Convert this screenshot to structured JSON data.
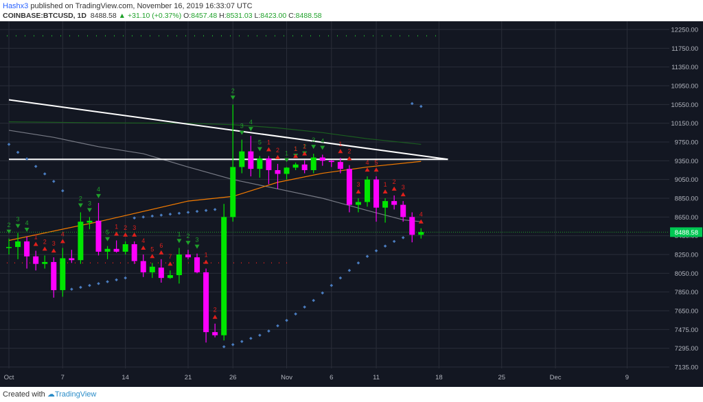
{
  "header": {
    "user": "Hashx3",
    "published": "published on TradingView.com, November 16, 2019 16:33:07 UTC",
    "symbol": "COINBASE:BTCUSD, 1D",
    "last": "8488.58",
    "change": "▲ +31.10 (+0.37%)",
    "o_label": "O:",
    "o_value": "8457.48",
    "h_label": "H:",
    "h_value": "8531.03",
    "l_label": "L:",
    "l_value": "8423.00",
    "c_label": "C:",
    "c_value": "8488.58"
  },
  "footer": {
    "created_with": "Created with",
    "brand": "TradingView"
  },
  "colors": {
    "background": "#131722",
    "grid": "#2a2e39",
    "axis_text": "#b2b5be",
    "bull": "#00e600",
    "bear": "#ff00ff",
    "sma_orange": "#f57c00",
    "sma_gray": "#787b86",
    "sma_green": "#1b5e20",
    "trendline": "#ffffff",
    "sar": "#4a7cbf",
    "td_buy": "#1fa12a",
    "td_sell": "#e0201b",
    "price_tag": "#00c853"
  },
  "chart_data": {
    "type": "candlestick",
    "x_ticks": [
      {
        "label": "Oct",
        "day": 0
      },
      {
        "label": "7",
        "day": 6
      },
      {
        "label": "14",
        "day": 13
      },
      {
        "label": "21",
        "day": 20
      },
      {
        "label": "26",
        "day": 25
      },
      {
        "label": "Nov",
        "day": 31
      },
      {
        "label": "6",
        "day": 36
      },
      {
        "label": "11",
        "day": 41
      },
      {
        "label": "18",
        "day": 48
      },
      {
        "label": "25",
        "day": 55
      },
      {
        "label": "Dec",
        "day": 61
      },
      {
        "label": "9",
        "day": 69
      }
    ],
    "y_ticks": [
      "12250.00",
      "11750.00",
      "11350.00",
      "10950.00",
      "10550.00",
      "10150.00",
      "9750.00",
      "9350.00",
      "9050.00",
      "8850.00",
      "8650.00",
      "8450.00",
      "8250.00",
      "8050.00",
      "7850.00",
      "7650.00",
      "7475.00",
      "7295.00",
      "7135.00"
    ],
    "y_ticks_values": [
      12250,
      11750,
      11350,
      10950,
      10550,
      10150,
      9750,
      9350,
      9050,
      8850,
      8650,
      8450,
      8250,
      8050,
      7850,
      7650,
      7475,
      7295,
      7135
    ],
    "price_tag": "8488.58",
    "last_price": 8488.58,
    "candles": [
      {
        "day": 0,
        "o": 8320,
        "h": 8420,
        "l": 8250,
        "c": 8330
      },
      {
        "day": 1,
        "o": 8330,
        "h": 8480,
        "l": 8200,
        "c": 8390
      },
      {
        "day": 2,
        "o": 8390,
        "h": 8440,
        "l": 8100,
        "c": 8230
      },
      {
        "day": 3,
        "o": 8230,
        "h": 8290,
        "l": 8080,
        "c": 8150
      },
      {
        "day": 4,
        "o": 8150,
        "h": 8240,
        "l": 8100,
        "c": 8170
      },
      {
        "day": 5,
        "o": 8170,
        "h": 8220,
        "l": 7790,
        "c": 7870
      },
      {
        "day": 6,
        "o": 7870,
        "h": 8320,
        "l": 7800,
        "c": 8210
      },
      {
        "day": 7,
        "o": 8210,
        "h": 8300,
        "l": 8160,
        "c": 8190
      },
      {
        "day": 8,
        "o": 8190,
        "h": 8700,
        "l": 8150,
        "c": 8600
      },
      {
        "day": 9,
        "o": 8590,
        "h": 8650,
        "l": 8520,
        "c": 8610
      },
      {
        "day": 10,
        "o": 8610,
        "h": 8800,
        "l": 8240,
        "c": 8280
      },
      {
        "day": 11,
        "o": 8280,
        "h": 8340,
        "l": 8200,
        "c": 8310
      },
      {
        "day": 12,
        "o": 8310,
        "h": 8400,
        "l": 8270,
        "c": 8280
      },
      {
        "day": 13,
        "o": 8280,
        "h": 8390,
        "l": 8250,
        "c": 8360
      },
      {
        "day": 14,
        "o": 8360,
        "h": 8390,
        "l": 8150,
        "c": 8180
      },
      {
        "day": 15,
        "o": 8180,
        "h": 8250,
        "l": 8010,
        "c": 8060
      },
      {
        "day": 16,
        "o": 8060,
        "h": 8160,
        "l": 8000,
        "c": 8120
      },
      {
        "day": 17,
        "o": 8110,
        "h": 8200,
        "l": 7950,
        "c": 8000
      },
      {
        "day": 18,
        "o": 8000,
        "h": 8080,
        "l": 7990,
        "c": 8030
      },
      {
        "day": 19,
        "o": 8030,
        "h": 8320,
        "l": 7940,
        "c": 8250
      },
      {
        "day": 20,
        "o": 8250,
        "h": 8300,
        "l": 8200,
        "c": 8220
      },
      {
        "day": 21,
        "o": 8220,
        "h": 8260,
        "l": 8050,
        "c": 8060
      },
      {
        "day": 22,
        "o": 8060,
        "h": 8100,
        "l": 7350,
        "c": 7450
      },
      {
        "day": 23,
        "o": 7450,
        "h": 7530,
        "l": 7400,
        "c": 7420
      },
      {
        "day": 24,
        "o": 7420,
        "h": 8790,
        "l": 7370,
        "c": 8650
      },
      {
        "day": 25,
        "o": 8650,
        "h": 10550,
        "l": 8600,
        "c": 9250
      },
      {
        "day": 26,
        "o": 9250,
        "h": 9800,
        "l": 9150,
        "c": 9550
      },
      {
        "day": 27,
        "o": 9550,
        "h": 9880,
        "l": 9100,
        "c": 9220
      },
      {
        "day": 28,
        "o": 9220,
        "h": 9450,
        "l": 9080,
        "c": 9400
      },
      {
        "day": 29,
        "o": 9400,
        "h": 9450,
        "l": 9000,
        "c": 9200
      },
      {
        "day": 30,
        "o": 9200,
        "h": 9300,
        "l": 8950,
        "c": 9140
      },
      {
        "day": 31,
        "o": 9140,
        "h": 9250,
        "l": 9050,
        "c": 9240
      },
      {
        "day": 32,
        "o": 9240,
        "h": 9320,
        "l": 9200,
        "c": 9290
      },
      {
        "day": 33,
        "o": 9290,
        "h": 9360,
        "l": 9150,
        "c": 9200
      },
      {
        "day": 34,
        "o": 9200,
        "h": 9500,
        "l": 9150,
        "c": 9420
      },
      {
        "day": 35,
        "o": 9420,
        "h": 9480,
        "l": 9270,
        "c": 9350
      },
      {
        "day": 36,
        "o": 9350,
        "h": 9370,
        "l": 9250,
        "c": 9330
      },
      {
        "day": 37,
        "o": 9330,
        "h": 9410,
        "l": 9150,
        "c": 9220
      },
      {
        "day": 38,
        "o": 9220,
        "h": 9280,
        "l": 8700,
        "c": 8780
      },
      {
        "day": 39,
        "o": 8780,
        "h": 8850,
        "l": 8700,
        "c": 8810
      },
      {
        "day": 40,
        "o": 8810,
        "h": 9100,
        "l": 8760,
        "c": 9050
      },
      {
        "day": 41,
        "o": 9050,
        "h": 9100,
        "l": 8600,
        "c": 8750
      },
      {
        "day": 42,
        "o": 8750,
        "h": 8850,
        "l": 8590,
        "c": 8820
      },
      {
        "day": 43,
        "o": 8820,
        "h": 8880,
        "l": 8730,
        "c": 8780
      },
      {
        "day": 44,
        "o": 8780,
        "h": 8820,
        "l": 8600,
        "c": 8650
      },
      {
        "day": 45,
        "o": 8650,
        "h": 8700,
        "l": 8380,
        "c": 8460
      },
      {
        "day": 46,
        "o": 8460,
        "h": 8530,
        "l": 8420,
        "c": 8490
      }
    ],
    "sma_orange": [
      [
        0,
        8400
      ],
      [
        10,
        8600
      ],
      [
        20,
        8820
      ],
      [
        25,
        8870
      ],
      [
        30,
        9020
      ],
      [
        35,
        9150
      ],
      [
        40,
        9250
      ],
      [
        46,
        9340
      ]
    ],
    "sma_gray": [
      [
        0,
        10000
      ],
      [
        5,
        9850
      ],
      [
        10,
        9650
      ],
      [
        15,
        9500
      ],
      [
        20,
        9250
      ],
      [
        25,
        9050
      ],
      [
        30,
        8950
      ],
      [
        35,
        8850
      ],
      [
        40,
        8720
      ],
      [
        44,
        8620
      ],
      [
        46,
        8600
      ]
    ],
    "sma_green": [
      [
        0,
        10180
      ],
      [
        10,
        10160
      ],
      [
        20,
        10150
      ],
      [
        25,
        10120
      ],
      [
        30,
        10050
      ],
      [
        35,
        9950
      ],
      [
        40,
        9820
      ],
      [
        46,
        9700
      ]
    ],
    "trendline_desc": [
      [
        0,
        10650
      ],
      [
        49,
        9380
      ]
    ],
    "trendline_horiz": [
      [
        0,
        9380
      ],
      [
        49,
        9380
      ]
    ],
    "dotted_resistance": 12080,
    "dotted_support": 8160,
    "sar": [
      [
        0,
        9700
      ],
      [
        1,
        9530
      ],
      [
        2,
        9390
      ],
      [
        3,
        9260
      ],
      [
        4,
        9140
      ],
      [
        5,
        9030
      ],
      [
        6,
        8930
      ],
      [
        7,
        7880
      ],
      [
        8,
        7900
      ],
      [
        9,
        7920
      ],
      [
        10,
        7940
      ],
      [
        11,
        7960
      ],
      [
        12,
        7980
      ],
      [
        13,
        8000
      ],
      [
        14,
        8640
      ],
      [
        15,
        8650
      ],
      [
        16,
        8660
      ],
      [
        17,
        8670
      ],
      [
        18,
        8680
      ],
      [
        19,
        8690
      ],
      [
        20,
        8700
      ],
      [
        21,
        8710
      ],
      [
        22,
        8720
      ],
      [
        23,
        8730
      ],
      [
        24,
        7310
      ],
      [
        25,
        7330
      ],
      [
        26,
        7360
      ],
      [
        27,
        7390
      ],
      [
        28,
        7420
      ],
      [
        29,
        7460
      ],
      [
        30,
        7510
      ],
      [
        31,
        7560
      ],
      [
        32,
        7620
      ],
      [
        33,
        7690
      ],
      [
        34,
        7760
      ],
      [
        35,
        7840
      ],
      [
        36,
        7920
      ],
      [
        37,
        8000
      ],
      [
        38,
        8080
      ],
      [
        39,
        8160
      ],
      [
        40,
        8230
      ],
      [
        41,
        8290
      ],
      [
        42,
        8340
      ],
      [
        43,
        8390
      ],
      [
        44,
        8430
      ],
      [
        45,
        10570
      ],
      [
        46,
        10510
      ]
    ],
    "td_buy": [
      {
        "day": 0,
        "label": "2"
      },
      {
        "day": 1,
        "label": "3"
      },
      {
        "day": 2,
        "label": "4"
      },
      {
        "day": 8,
        "label": "2"
      },
      {
        "day": 9,
        "label": "3"
      },
      {
        "day": 10,
        "label": "4"
      },
      {
        "day": 11,
        "label": "5"
      },
      {
        "day": 19,
        "label": "1"
      },
      {
        "day": 20,
        "label": "2"
      },
      {
        "day": 21,
        "label": "3"
      },
      {
        "day": 25,
        "label": "2"
      },
      {
        "day": 26,
        "label": "3"
      },
      {
        "day": 27,
        "label": "4"
      },
      {
        "day": 28,
        "label": "5"
      },
      {
        "day": 31,
        "label": "1"
      },
      {
        "day": 32,
        "label": "1"
      },
      {
        "day": 33,
        "label": "2"
      },
      {
        "day": 34,
        "label": "3"
      },
      {
        "day": 35,
        "label": "4"
      }
    ],
    "td_sell": [
      {
        "day": 3,
        "label": "1"
      },
      {
        "day": 4,
        "label": "2"
      },
      {
        "day": 5,
        "label": "3"
      },
      {
        "day": 6,
        "label": "4"
      },
      {
        "day": 12,
        "label": "1"
      },
      {
        "day": 13,
        "label": "2"
      },
      {
        "day": 14,
        "label": "3"
      },
      {
        "day": 15,
        "label": "4"
      },
      {
        "day": 16,
        "label": "5"
      },
      {
        "day": 17,
        "label": "6"
      },
      {
        "day": 18,
        "label": "7"
      },
      {
        "day": 22,
        "label": "1"
      },
      {
        "day": 23,
        "label": "2"
      },
      {
        "day": 29,
        "label": "1"
      },
      {
        "day": 30,
        "label": "2"
      },
      {
        "day": 32,
        "label": "1"
      },
      {
        "day": 33,
        "label": "1"
      },
      {
        "day": 37,
        "label": "1"
      },
      {
        "day": 38,
        "label": "2"
      },
      {
        "day": 39,
        "label": "3"
      },
      {
        "day": 40,
        "label": "4"
      },
      {
        "day": 41,
        "label": "5"
      },
      {
        "day": 42,
        "label": "1"
      },
      {
        "day": 43,
        "label": "2"
      },
      {
        "day": 44,
        "label": "3"
      },
      {
        "day": 46,
        "label": "4"
      }
    ]
  }
}
